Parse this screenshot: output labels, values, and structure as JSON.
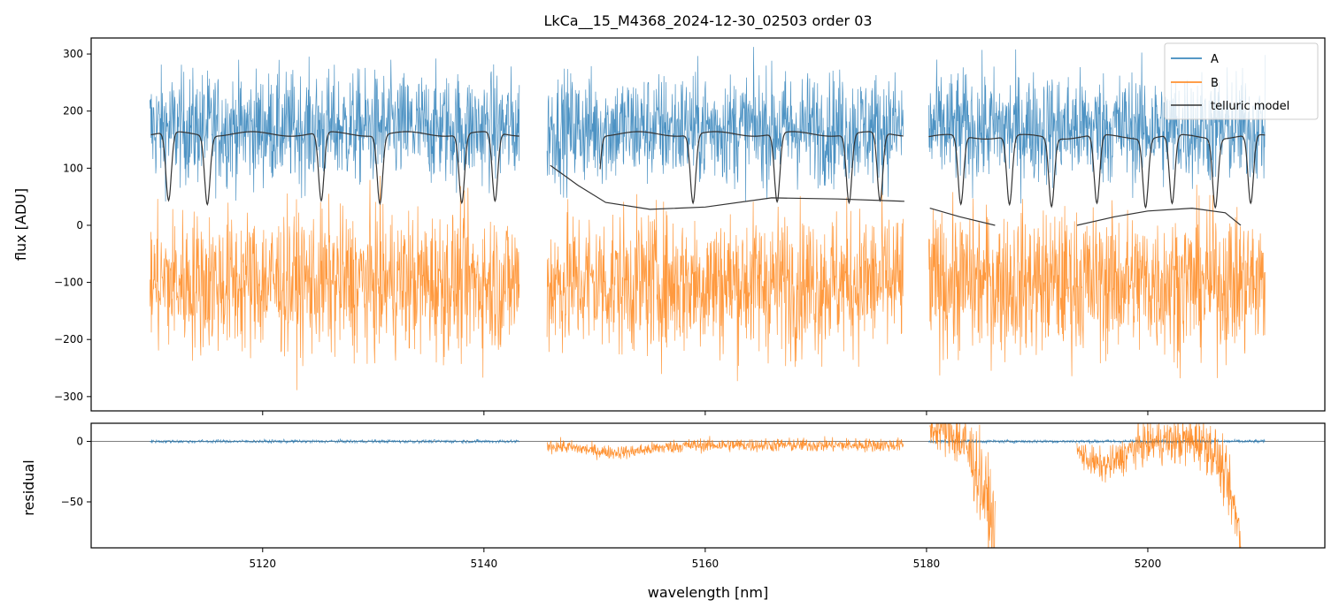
{
  "chart_data": [
    {
      "panel": "flux",
      "type": "line",
      "title": "LkCa__15_M4368_2024-12-30_02503  order 03",
      "xlabel": "",
      "ylabel": "flux [ADU]",
      "xlim": [
        5104.5,
        5216.0
      ],
      "ylim": [
        -325,
        328
      ],
      "xticks": [
        5120,
        5140,
        5160,
        5180,
        5200
      ],
      "yticks": [
        -300,
        -200,
        -100,
        0,
        100,
        200,
        300
      ],
      "ytick_labels": [
        "−300",
        "−200",
        "−100",
        "0",
        "100",
        "200",
        "300"
      ],
      "legend": {
        "placement": "top-right",
        "entries": [
          "A",
          "B",
          "telluric model"
        ]
      },
      "series": [
        {
          "name": "A",
          "color": "#1f77b4",
          "segments": [
            [
              5109.8,
              5143.2
            ],
            [
              5145.7,
              5177.9
            ],
            [
              5180.2,
              5210.6
            ]
          ],
          "approx_mean": 170,
          "approx_noise": 70
        },
        {
          "name": "B",
          "color": "#ff7f0e",
          "segments": [
            [
              5109.8,
              5143.2
            ],
            [
              5145.7,
              5177.9
            ],
            [
              5180.2,
              5210.6
            ]
          ],
          "approx_mean": -100,
          "approx_noise": 90
        },
        {
          "name": "telluric model",
          "color": "#333333",
          "upper_segments": [
            {
              "x0": 5109.9,
              "x1": 5143.2,
              "level": 160
            },
            {
              "x0": 5150.5,
              "x1": 5177.9,
              "level": 160
            },
            {
              "x0": 5180.2,
              "x1": 5210.6,
              "level": 155
            }
          ],
          "lower_segments": [
            {
              "x": [
                5146.0,
                5148.5,
                5151.0,
                5155.0,
                5160.0,
                5166.0,
                5172.0,
                5178.0
              ],
              "y": [
                105,
                70,
                40,
                28,
                32,
                48,
                46,
                42
              ]
            },
            {
              "x": [
                5180.3,
                5183.0,
                5186.2
              ],
              "y": [
                30,
                15,
                0
              ]
            },
            {
              "x": [
                5193.6,
                5197.0,
                5200.0,
                5204.0,
                5207.0,
                5208.4
              ],
              "y": [
                0,
                15,
                25,
                30,
                22,
                0
              ]
            }
          ]
        }
      ]
    },
    {
      "panel": "residual",
      "type": "line",
      "title": "",
      "xlabel": "wavelength [nm]",
      "ylabel": "residual",
      "xlim": [
        5104.5,
        5216.0
      ],
      "ylim": [
        -88,
        15
      ],
      "xticks": [
        5120,
        5140,
        5160,
        5180,
        5200
      ],
      "xtick_labels": [
        "5120",
        "5140",
        "5160",
        "5180",
        "5200"
      ],
      "yticks": [
        -50,
        0
      ],
      "ytick_labels": [
        "−50",
        "0"
      ],
      "zero_line": 0,
      "series": [
        {
          "name": "A",
          "color": "#1f77b4",
          "segments": [
            [
              5109.8,
              5143.2
            ],
            [
              5180.2,
              5210.6
            ]
          ],
          "approx_mean": 0,
          "approx_noise": 1
        },
        {
          "name": "B",
          "color": "#ff7f0e",
          "segments": [
            [
              5145.7,
              5177.9
            ],
            [
              5180.3,
              5186.2
            ],
            [
              5193.6,
              5208.4
            ]
          ],
          "approx_mean": -5,
          "approx_noise": 6
        }
      ]
    }
  ]
}
